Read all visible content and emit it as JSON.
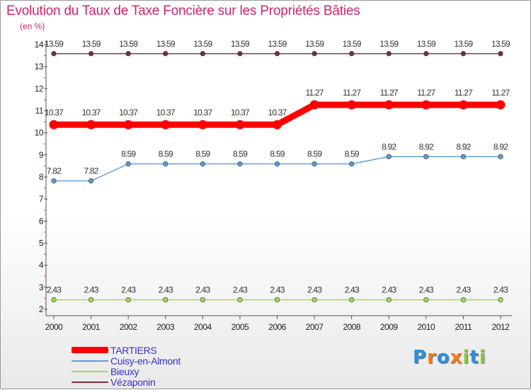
{
  "chart_data": {
    "type": "line",
    "title": "Evolution du Taux de Taxe Foncière sur les Propriétés Bâties",
    "subtitle": "(en %)",
    "xlabel": "",
    "ylabel": "(en %)",
    "ylim": [
      2,
      14
    ],
    "y_ticks": [
      "2",
      "3",
      "4",
      "5",
      "6",
      "7",
      "8",
      "9",
      "10",
      "11",
      "12",
      "13",
      "14"
    ],
    "categories": [
      "2000",
      "2001",
      "2002",
      "2003",
      "2004",
      "2005",
      "2006",
      "2007",
      "2008",
      "2009",
      "2010",
      "2011",
      "2012"
    ],
    "series": [
      {
        "name": "TARTIERS",
        "color": "#ff0000",
        "style": "thick",
        "values": [
          10.37,
          10.37,
          10.37,
          10.37,
          10.37,
          10.37,
          10.37,
          11.27,
          11.27,
          11.27,
          11.27,
          11.27,
          11.27
        ],
        "labels": [
          "10.37",
          "10.37",
          "10.37",
          "10.37",
          "10.37",
          "10.37",
          "10.37",
          "11.27",
          "11.27",
          "11.27",
          "11.27",
          "11.27",
          "11.27"
        ]
      },
      {
        "name": "Cuisy-en-Almont",
        "color": "#5b9bd5",
        "style": "thin",
        "values": [
          7.82,
          7.82,
          8.59,
          8.59,
          8.59,
          8.59,
          8.59,
          8.59,
          8.59,
          8.92,
          8.92,
          8.92,
          8.92
        ],
        "labels": [
          "7.82",
          "7.82",
          "8.59",
          "8.59",
          "8.59",
          "8.59",
          "8.59",
          "8.59",
          "8.59",
          "8.92",
          "8.92",
          "8.92",
          "8.92"
        ]
      },
      {
        "name": "Bieuxy",
        "color": "#99dd55",
        "style": "thin",
        "values": [
          2.43,
          2.43,
          2.43,
          2.43,
          2.43,
          2.43,
          2.43,
          2.43,
          2.43,
          2.43,
          2.43,
          2.43,
          2.43
        ],
        "labels": [
          "2.43",
          "2.43",
          "2.43",
          "2.43",
          "2.43",
          "2.43",
          "2.43",
          "2.43",
          "2.43",
          "2.43",
          "2.43",
          "2.43",
          "2.43"
        ]
      },
      {
        "name": "Vézaponin",
        "color": "#7a2c3a",
        "style": "thin",
        "values": [
          13.59,
          13.59,
          13.59,
          13.59,
          13.59,
          13.59,
          13.59,
          13.59,
          13.59,
          13.59,
          13.59,
          13.59,
          13.59
        ],
        "labels": [
          "13.59",
          "13.59",
          "13.59",
          "13.59",
          "13.59",
          "13.59",
          "13.59",
          "13.59",
          "13.59",
          "13.59",
          "13.59",
          "13.59",
          "13.59"
        ]
      }
    ]
  },
  "legend": {
    "placement": "bottom-left",
    "items": [
      "TARTIERS",
      "Cuisy-en-Almont",
      "Bieuxy",
      "Vézaponin"
    ]
  },
  "logo": {
    "text": "Proxiti",
    "letters": [
      "P",
      "r",
      "o",
      "x",
      "i",
      "t",
      "i"
    ],
    "colors": [
      "#2f8fd6",
      "#f07b17",
      "#2f8fd6",
      "#f07b17",
      "#8dc63f",
      "#2f8fd6",
      "#8dc63f"
    ]
  }
}
